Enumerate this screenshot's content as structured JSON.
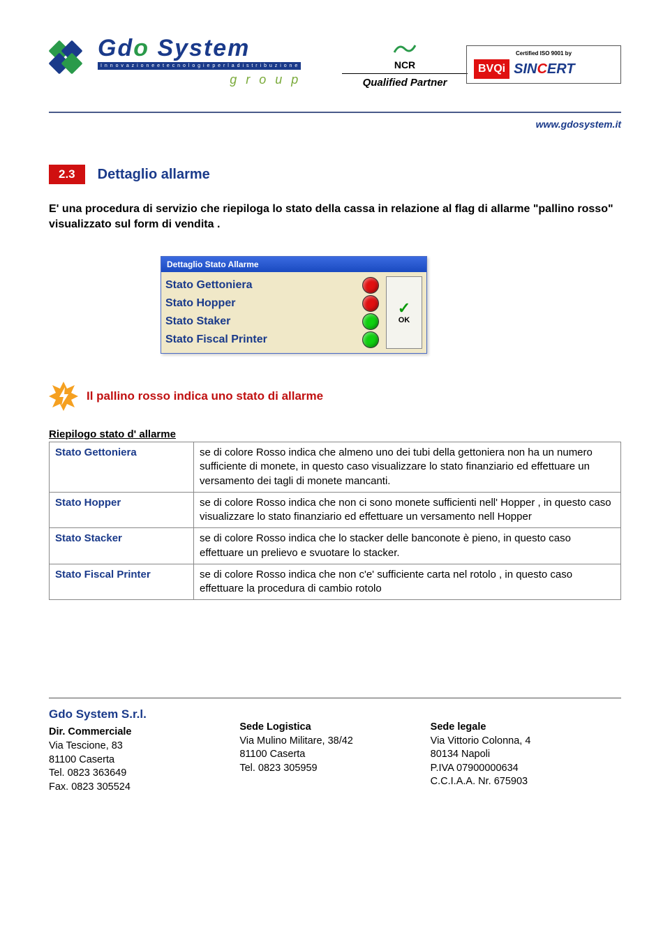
{
  "header": {
    "url": "www.gdosystem.it",
    "gdo_name_part1": "Gd",
    "gdo_name_o": "o",
    "gdo_name_part2": " System",
    "gdo_tagline": "I n n o v a z i o n e   e   t e c n o l o g i e   p e r   l a   d i s t r i b u z i o n e",
    "gdo_group": "g r o u p",
    "ncr_label": "NCR",
    "ncr_partner": "Qualified Partner",
    "cert_title": "Certified ISO 9001 by",
    "bvqi": "BVQi",
    "sincert_pre": "SIN",
    "sincert_c": "C",
    "sincert_post": "ERT"
  },
  "section": {
    "number": "2.3",
    "title": "Dettaglio allarme",
    "intro": "E' una procedura di servizio che riepiloga lo stato della cassa in relazione al flag di allarme \"pallino rosso\" visualizzato sul form di vendita ."
  },
  "dialog": {
    "title": "Dettaglio Stato Allarme",
    "ok_label": "OK",
    "rows": [
      {
        "label": "Stato Gettoniera",
        "color": "#e01010"
      },
      {
        "label": "Stato Hopper",
        "color": "#e01010"
      },
      {
        "label": "Stato Staker",
        "color": "#10d010"
      },
      {
        "label": "Stato Fiscal Printer",
        "color": "#10d010"
      }
    ]
  },
  "alert": {
    "text": "Il pallino rosso indica uno stato di allarme",
    "burst_color": "#f5a020",
    "bolt_color": "#ffffff"
  },
  "riepilogo": {
    "heading": "Riepilogo stato d' allarme",
    "rows": [
      {
        "k": "Stato Gettoniera",
        "v": "se di colore Rosso indica che almeno uno dei tubi della gettoniera non ha un numero sufficiente di monete, in questo caso visualizzare lo stato finanziario ed effettuare un versamento dei tagli di monete mancanti."
      },
      {
        "k": "Stato Hopper",
        "v": "se di colore Rosso indica che non ci sono monete sufficienti nell' Hopper , in questo caso visualizzare lo stato finanziario ed effettuare un versamento nell Hopper"
      },
      {
        "k": "Stato Stacker",
        "v": "se di colore Rosso indica che lo stacker delle banconote è pieno, in questo caso effettuare un prelievo e svuotare lo stacker."
      },
      {
        "k": "Stato Fiscal Printer",
        "v": "se di colore Rosso indica che non c'e' sufficiente carta nel rotolo , in questo caso effettuare la procedura di cambio rotolo"
      }
    ]
  },
  "footer": {
    "company": "Gdo System S.r.l.",
    "col1_h": "Dir. Commerciale",
    "col1_l1": "Via Tescione, 83",
    "col1_l2": "81100 Caserta",
    "col1_l3": "Tel.  0823 363649",
    "col1_l4": "Fax. 0823 305524",
    "col2_h": "Sede Logistica",
    "col2_l1": "Via Mulino Militare, 38/42",
    "col2_l2": "81100  Caserta",
    "col2_l3": "Tel. 0823 305959",
    "col3_h": "Sede legale",
    "col3_l1": "Via Vittorio Colonna, 4",
    "col3_l2": "80134 Napoli",
    "col3_l3": "P.IVA 07900000634",
    "col3_l4": "C.C.I.A.A. Nr. 675903"
  }
}
